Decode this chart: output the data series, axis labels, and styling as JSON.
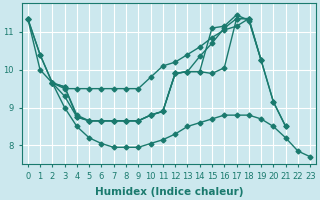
{
  "background_color": "#cce8ee",
  "grid_color": "#ffffff",
  "line_color": "#1a7a6e",
  "marker": "D",
  "markersize": 2.5,
  "linewidth": 1.0,
  "xlabel": "Humidex (Indice chaleur)",
  "xlabel_fontsize": 7.5,
  "tick_fontsize": 6,
  "ylim": [
    7.5,
    11.75
  ],
  "xlim": [
    -0.5,
    23.5
  ],
  "yticks": [
    8,
    9,
    10,
    11
  ],
  "xticks": [
    0,
    1,
    2,
    3,
    4,
    5,
    6,
    7,
    8,
    9,
    10,
    11,
    12,
    13,
    14,
    15,
    16,
    17,
    18,
    19,
    20,
    21,
    22,
    23
  ],
  "series": [
    {
      "points": [
        [
          0,
          11.35
        ],
        [
          1,
          10.4
        ],
        [
          2,
          9.65
        ],
        [
          3,
          9.55
        ],
        [
          4,
          8.8
        ],
        [
          5,
          8.65
        ],
        [
          6,
          8.65
        ],
        [
          7,
          8.65
        ],
        [
          8,
          8.65
        ],
        [
          9,
          8.65
        ],
        [
          10,
          8.8
        ],
        [
          11,
          8.9
        ],
        [
          12,
          9.9
        ],
        [
          13,
          9.95
        ],
        [
          14,
          9.95
        ],
        [
          15,
          11.1
        ],
        [
          16,
          11.15
        ],
        [
          17,
          11.45
        ],
        [
          18,
          11.3
        ],
        [
          19,
          10.25
        ],
        [
          20,
          9.15
        ],
        [
          21,
          8.5
        ]
      ]
    },
    {
      "points": [
        [
          0,
          11.35
        ],
        [
          1,
          10.4
        ],
        [
          2,
          9.65
        ],
        [
          3,
          9.5
        ],
        [
          4,
          9.5
        ],
        [
          5,
          9.5
        ],
        [
          6,
          9.5
        ],
        [
          7,
          9.5
        ],
        [
          8,
          9.5
        ],
        [
          9,
          9.5
        ],
        [
          10,
          9.8
        ],
        [
          11,
          10.1
        ],
        [
          12,
          10.2
        ],
        [
          13,
          10.4
        ],
        [
          14,
          10.6
        ],
        [
          15,
          10.85
        ],
        [
          16,
          11.05
        ],
        [
          17,
          11.15
        ],
        [
          18,
          11.35
        ]
      ]
    },
    {
      "points": [
        [
          2,
          9.65
        ],
        [
          3,
          9.55
        ],
        [
          4,
          8.75
        ],
        [
          5,
          8.65
        ],
        [
          6,
          8.65
        ],
        [
          7,
          8.65
        ],
        [
          8,
          8.65
        ],
        [
          9,
          8.65
        ],
        [
          10,
          8.8
        ],
        [
          11,
          8.9
        ],
        [
          12,
          9.9
        ],
        [
          13,
          9.95
        ],
        [
          14,
          9.95
        ],
        [
          15,
          9.9
        ],
        [
          16,
          10.05
        ],
        [
          17,
          11.35
        ],
        [
          18,
          11.35
        ],
        [
          19,
          10.25
        ],
        [
          20,
          9.15
        ],
        [
          21,
          8.5
        ]
      ]
    },
    {
      "points": [
        [
          2,
          9.65
        ],
        [
          3,
          9.3
        ],
        [
          4,
          8.75
        ],
        [
          5,
          8.65
        ],
        [
          6,
          8.65
        ],
        [
          7,
          8.65
        ],
        [
          8,
          8.65
        ],
        [
          9,
          8.65
        ],
        [
          10,
          8.8
        ],
        [
          11,
          8.9
        ],
        [
          12,
          9.9
        ],
        [
          13,
          9.95
        ],
        [
          14,
          10.35
        ],
        [
          15,
          10.7
        ],
        [
          16,
          11.1
        ],
        [
          17,
          11.35
        ],
        [
          18,
          11.35
        ],
        [
          19,
          10.25
        ]
      ]
    },
    {
      "points": [
        [
          0,
          11.35
        ],
        [
          1,
          10.0
        ],
        [
          2,
          9.65
        ],
        [
          3,
          9.0
        ],
        [
          4,
          8.5
        ],
        [
          5,
          8.2
        ],
        [
          6,
          8.05
        ],
        [
          7,
          7.95
        ],
        [
          8,
          7.95
        ],
        [
          9,
          7.95
        ],
        [
          10,
          8.05
        ],
        [
          11,
          8.15
        ],
        [
          12,
          8.3
        ],
        [
          13,
          8.5
        ],
        [
          14,
          8.6
        ],
        [
          15,
          8.7
        ],
        [
          16,
          8.8
        ],
        [
          17,
          8.8
        ],
        [
          18,
          8.8
        ],
        [
          19,
          8.7
        ],
        [
          20,
          8.5
        ],
        [
          21,
          8.2
        ],
        [
          22,
          7.85
        ],
        [
          23,
          7.7
        ]
      ]
    }
  ]
}
